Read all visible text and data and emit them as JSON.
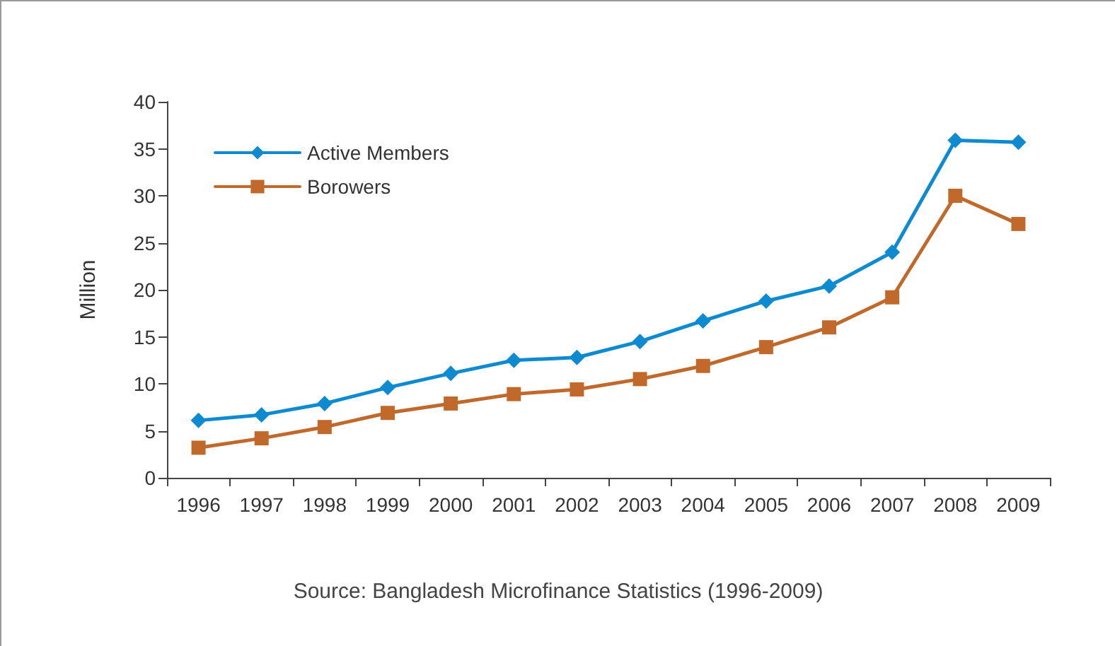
{
  "chart_data": {
    "type": "line",
    "categories": [
      "1996",
      "1997",
      "1998",
      "1999",
      "2000",
      "2001",
      "2002",
      "2003",
      "2004",
      "2005",
      "2006",
      "2007",
      "2008",
      "2009"
    ],
    "series": [
      {
        "name": "Active Members",
        "color": "#0e8ad0",
        "marker": "diamond",
        "values": [
          6.1,
          6.7,
          7.9,
          9.6,
          11.1,
          12.5,
          12.8,
          14.5,
          16.7,
          18.8,
          20.4,
          24.0,
          35.9,
          35.7
        ]
      },
      {
        "name": "Borowers",
        "color": "#c0692b",
        "marker": "square",
        "values": [
          3.2,
          4.2,
          5.4,
          6.9,
          7.9,
          8.9,
          9.4,
          10.5,
          11.9,
          13.9,
          16.0,
          19.2,
          30.0,
          27.0
        ]
      }
    ],
    "ylabel": "Million",
    "ylim": [
      0,
      40
    ],
    "yticks": [
      0,
      5,
      10,
      15,
      20,
      25,
      30,
      35,
      40
    ],
    "grid": false,
    "legend": "top left",
    "annotations": [
      "Source: Bangladesh Microfinance Statistics (1996-2009)"
    ]
  }
}
